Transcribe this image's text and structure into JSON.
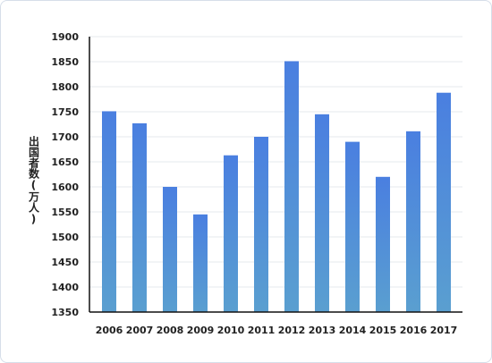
{
  "chart_data": {
    "type": "bar",
    "categories": [
      "2006",
      "2007",
      "2008",
      "2009",
      "2010",
      "2011",
      "2012",
      "2013",
      "2014",
      "2015",
      "2016",
      "2017"
    ],
    "values": [
      1751,
      1727,
      1600,
      1545,
      1663,
      1700,
      1851,
      1745,
      1690,
      1620,
      1711,
      1788
    ],
    "title": "",
    "xlabel": "",
    "ylabel": "出国者数(万人)",
    "ylim": [
      1350,
      1900
    ],
    "yticks": [
      1350,
      1400,
      1450,
      1500,
      1550,
      1600,
      1650,
      1700,
      1750,
      1800,
      1850,
      1900
    ],
    "grid": true,
    "bar_gradient": [
      "#4a7fe0",
      "#5a9fd0"
    ]
  }
}
